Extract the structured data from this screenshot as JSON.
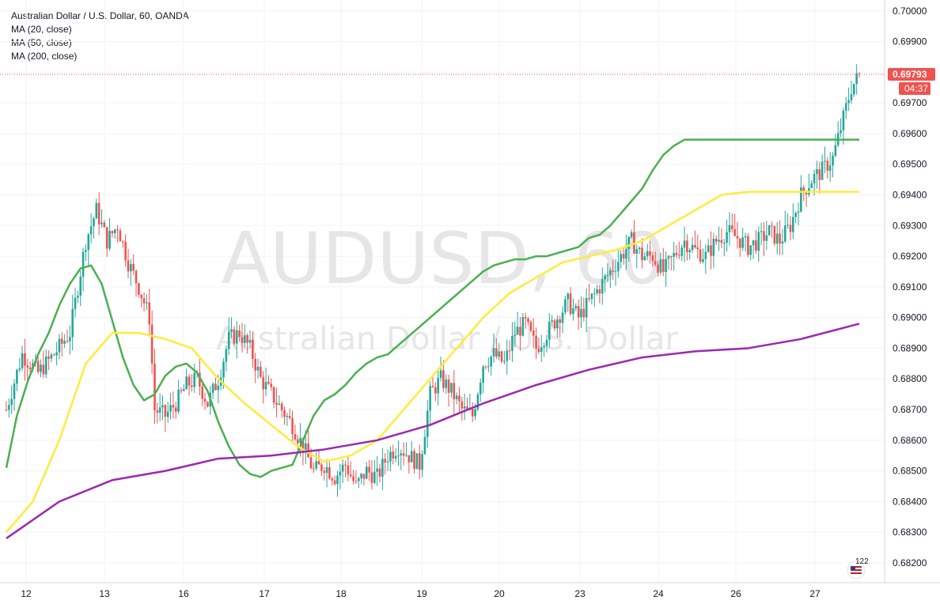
{
  "legend": {
    "title": "Australian Dollar / U.S. Dollar, 60, OANDA",
    "ma20": "MA (20, close)",
    "ma50": "MA (50, close)",
    "ma200": "MA (200, close)"
  },
  "watermark": {
    "symbol": "AUDUSD, 60",
    "name": "Australian Dollar / U.S. Dollar"
  },
  "last_price": {
    "value": "0.69793",
    "countdown": "04:37",
    "color": "#ef5350"
  },
  "badge": {
    "count": "122",
    "icon": "flag-icon"
  },
  "colors": {
    "up": "#26a69a",
    "down": "#ef5350",
    "ma20": "#4caf50",
    "ma50": "#ffeb3b",
    "ma200": "#9c27b0",
    "grid": "#f0f3fa",
    "axis": "#d1d4dc"
  },
  "chart_data": {
    "type": "candlestick",
    "timeframe": "60",
    "symbol": "AUDUSD",
    "title": "Australian Dollar / U.S. Dollar, 60, OANDA",
    "ylim": [
      0.6812,
      0.7002
    ],
    "y_ticks": [
      "0.70000",
      "0.69900",
      "0.69800",
      "0.69700",
      "0.69600",
      "0.69500",
      "0.69400",
      "0.69300",
      "0.69200",
      "0.69100",
      "0.69000",
      "0.68900",
      "0.68800",
      "0.68700",
      "0.68600",
      "0.68500",
      "0.68400",
      "0.68300",
      "0.68200"
    ],
    "x_ticks": [
      "12",
      "13",
      "16",
      "17",
      "18",
      "19",
      "20",
      "23",
      "24",
      "26",
      "27"
    ],
    "grid": true,
    "last_price": 0.69793,
    "series": [
      {
        "name": "MA (20, close)",
        "color": "#4caf50",
        "x": [
          0,
          4,
          8,
          12,
          16,
          20,
          24,
          28,
          32,
          36,
          40,
          44,
          48,
          52,
          56,
          60,
          64,
          68,
          72,
          76,
          80,
          84,
          88,
          92,
          96,
          100,
          104,
          108,
          112,
          116,
          120,
          124,
          128,
          132,
          136,
          140,
          144,
          148,
          152,
          156,
          160,
          164,
          168,
          172,
          176,
          180,
          184,
          188,
          192,
          196,
          200,
          204,
          208,
          212,
          216,
          220,
          224,
          228,
          232,
          236,
          240,
          244,
          248,
          252,
          256,
          260,
          264,
          268,
          272,
          276,
          280,
          284,
          288,
          292,
          296,
          300,
          304,
          308,
          312,
          316,
          320,
          322
        ],
        "values": [
          0.6851,
          0.6868,
          0.6879,
          0.6888,
          0.6895,
          0.6904,
          0.6911,
          0.6916,
          0.6917,
          0.6911,
          0.6899,
          0.6887,
          0.6878,
          0.6873,
          0.6875,
          0.6881,
          0.6884,
          0.6885,
          0.6882,
          0.6876,
          0.6866,
          0.6858,
          0.6852,
          0.6849,
          0.6848,
          0.685,
          0.6851,
          0.6852,
          0.686,
          0.6868,
          0.6873,
          0.6875,
          0.6878,
          0.6882,
          0.6885,
          0.6887,
          0.6888,
          0.6891,
          0.6894,
          0.6897,
          0.69,
          0.6903,
          0.6906,
          0.6909,
          0.6912,
          0.6915,
          0.6917,
          0.6918,
          0.6919,
          0.6919,
          0.692,
          0.692,
          0.6921,
          0.6922,
          0.6923,
          0.6926,
          0.6927,
          0.693,
          0.6934,
          0.6938,
          0.6942,
          0.6948,
          0.6953,
          0.6956,
          0.6958,
          0.6958,
          0.6958,
          0.6958,
          0.6958,
          0.6958,
          0.6958,
          0.6958,
          0.6958,
          0.6958,
          0.6958,
          0.6958,
          0.6958,
          0.6958,
          0.6958,
          0.6958,
          0.6958,
          0.6958
        ]
      },
      {
        "name": "MA (50, close)",
        "color": "#ffeb3b",
        "x": [
          0,
          10,
          20,
          30,
          40,
          50,
          60,
          70,
          80,
          90,
          100,
          110,
          120,
          130,
          140,
          150,
          160,
          170,
          180,
          190,
          200,
          210,
          220,
          230,
          240,
          250,
          260,
          270,
          280,
          290,
          300,
          310,
          322
        ],
        "values": [
          0.683,
          0.684,
          0.686,
          0.6885,
          0.6895,
          0.6895,
          0.6893,
          0.689,
          0.688,
          0.6872,
          0.6865,
          0.6858,
          0.6853,
          0.6855,
          0.686,
          0.687,
          0.688,
          0.689,
          0.69,
          0.6908,
          0.6913,
          0.6918,
          0.692,
          0.6922,
          0.6925,
          0.693,
          0.6935,
          0.694,
          0.6941,
          0.6941,
          0.6941,
          0.6941,
          0.6941
        ]
      },
      {
        "name": "MA (200, close)",
        "color": "#9c27b0",
        "x": [
          0,
          20,
          40,
          60,
          80,
          100,
          120,
          140,
          160,
          180,
          200,
          220,
          240,
          260,
          280,
          300,
          322
        ],
        "values": [
          0.6828,
          0.684,
          0.6847,
          0.685,
          0.6854,
          0.6855,
          0.6857,
          0.686,
          0.6865,
          0.6872,
          0.6878,
          0.6883,
          0.6887,
          0.6889,
          0.689,
          0.6893,
          0.6898
        ]
      }
    ]
  }
}
